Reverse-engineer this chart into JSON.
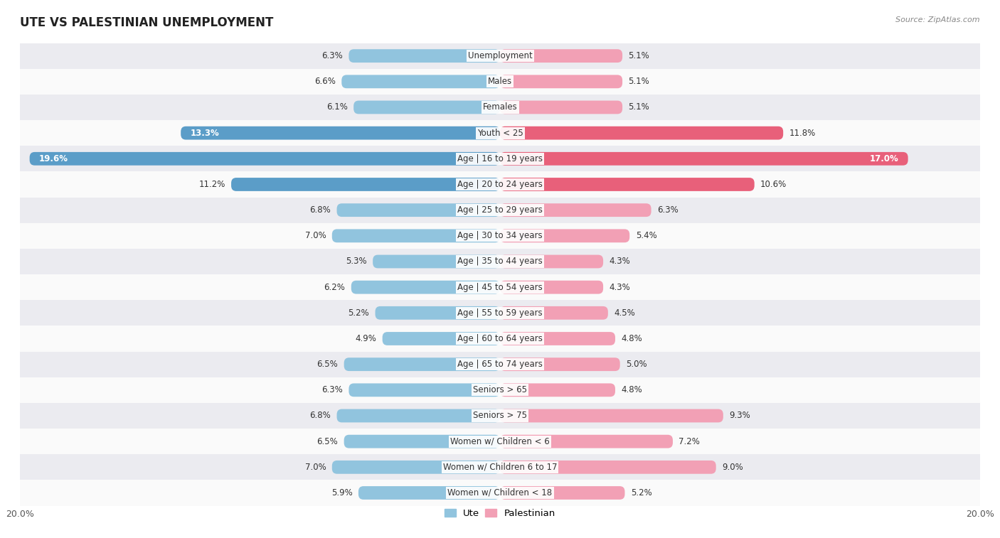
{
  "title": "UTE VS PALESTINIAN UNEMPLOYMENT",
  "source": "Source: ZipAtlas.com",
  "categories": [
    "Unemployment",
    "Males",
    "Females",
    "Youth < 25",
    "Age | 16 to 19 years",
    "Age | 20 to 24 years",
    "Age | 25 to 29 years",
    "Age | 30 to 34 years",
    "Age | 35 to 44 years",
    "Age | 45 to 54 years",
    "Age | 55 to 59 years",
    "Age | 60 to 64 years",
    "Age | 65 to 74 years",
    "Seniors > 65",
    "Seniors > 75",
    "Women w/ Children < 6",
    "Women w/ Children 6 to 17",
    "Women w/ Children < 18"
  ],
  "ute_values": [
    6.3,
    6.6,
    6.1,
    13.3,
    19.6,
    11.2,
    6.8,
    7.0,
    5.3,
    6.2,
    5.2,
    4.9,
    6.5,
    6.3,
    6.8,
    6.5,
    7.0,
    5.9
  ],
  "palestinian_values": [
    5.1,
    5.1,
    5.1,
    11.8,
    17.0,
    10.6,
    6.3,
    5.4,
    4.3,
    4.3,
    4.5,
    4.8,
    5.0,
    4.8,
    9.3,
    7.2,
    9.0,
    5.2
  ],
  "ute_color": "#91C4DE",
  "palestinian_color": "#F2A0B5",
  "ute_highlight_color": "#5B9DC8",
  "palestinian_highlight_color": "#E8607A",
  "highlight_rows": [
    3,
    4,
    5
  ],
  "xlim": 20.0,
  "bg_color_stripe": "#EBEBF0",
  "bg_color_white": "#FAFAFA",
  "label_fontsize": 8.5,
  "title_fontsize": 12,
  "bar_height": 0.52,
  "legend_ute": "Ute",
  "legend_palestinian": "Palestinian"
}
